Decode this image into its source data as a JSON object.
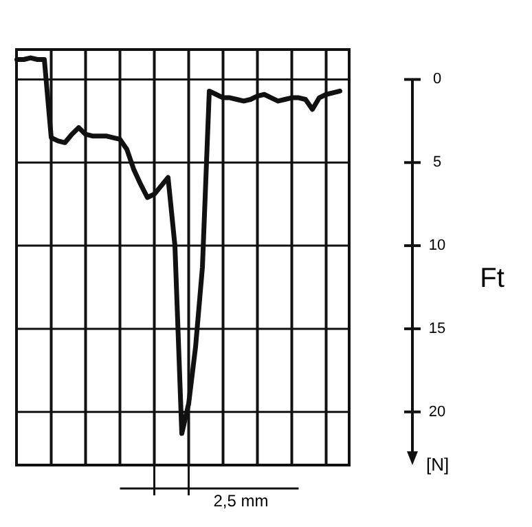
{
  "chart_data": {
    "type": "line",
    "ylabel": "Ft",
    "annotations": [
      "[N]",
      "2,5 mm"
    ],
    "categories": [
      null,
      null,
      null,
      null,
      null,
      null,
      null,
      null,
      null,
      null,
      null,
      null,
      null,
      null,
      null,
      null,
      null,
      null,
      null,
      null,
      null,
      null,
      null,
      null,
      null,
      null,
      null,
      null,
      null,
      null,
      null,
      null,
      null,
      null,
      null,
      null,
      null,
      null,
      null,
      null,
      null,
      null,
      null,
      null,
      null,
      null,
      null,
      null
    ],
    "values": [
      -1.2,
      -1.2,
      -1.3,
      -1.2,
      -1.2,
      3.5,
      3.7,
      3.8,
      3.3,
      2.9,
      3.3,
      3.4,
      3.4,
      3.4,
      3.5,
      3.6,
      4.2,
      5.4,
      6.3,
      7.1,
      6.9,
      6.4,
      5.9,
      10.0,
      21.3,
      19.5,
      16.1,
      11.3,
      0.7,
      0.9,
      1.1,
      1.1,
      1.2,
      1.3,
      1.2,
      1.0,
      0.9,
      1.1,
      1.3,
      1.2,
      1.1,
      1.1,
      1.2,
      1.8,
      1.1,
      0.9,
      0.8,
      0.7
    ],
    "color": "#111111",
    "line_style": "solid",
    "marker": "none",
    "ylim": [
      23.2,
      -1.8
    ],
    "yticks": [
      0,
      5,
      10,
      15,
      20
    ],
    "grid": true,
    "tick_labels": "y",
    "legend": false
  }
}
